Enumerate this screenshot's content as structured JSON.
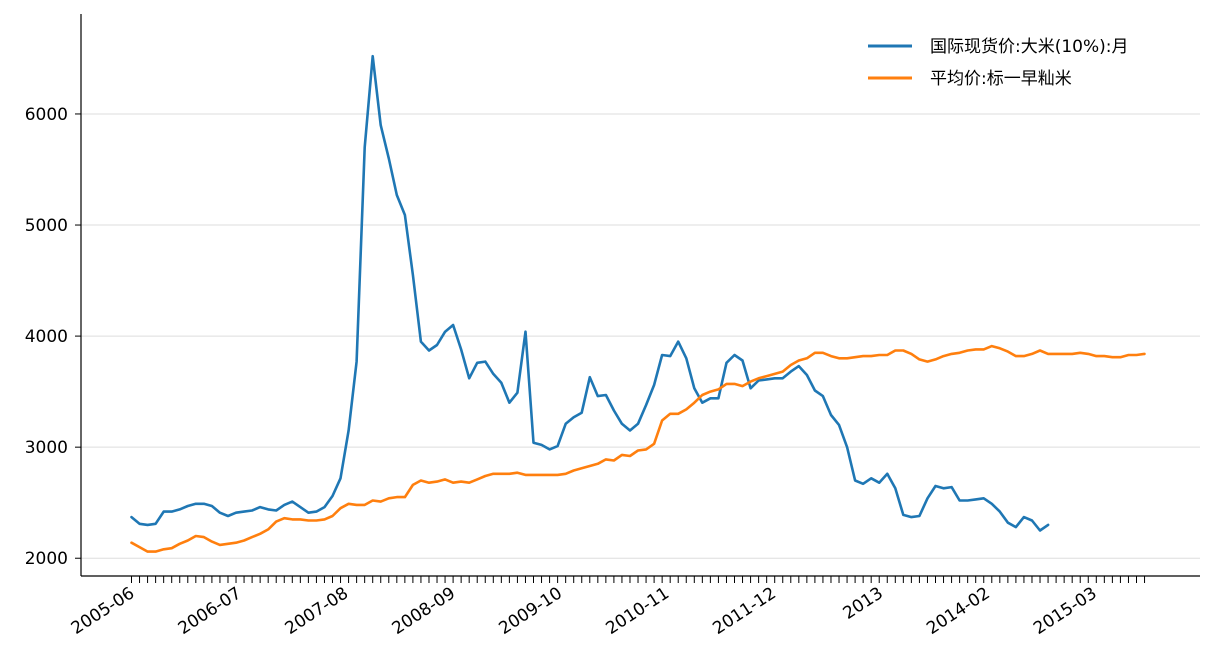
{
  "chart_data": {
    "type": "line",
    "x_start": "2005-06",
    "x_end": "2015-12",
    "xtick_labels": [
      "2005-06",
      "2006-07",
      "2007-08",
      "2008-09",
      "2009-10",
      "2010-11",
      "2011-12",
      "2013",
      "2014-02",
      "2015-03"
    ],
    "ytick_labels": [
      "2000",
      "3000",
      "4000",
      "5000",
      "6000"
    ],
    "ylim": [
      1840,
      6900
    ],
    "grid": "horizontal",
    "legend_position": "top-right",
    "series": [
      {
        "name": "国际现货价:大米(10%):月",
        "color": "#1f77b4",
        "values": [
          2370,
          2310,
          2300,
          2310,
          2420,
          2420,
          2440,
          2470,
          2490,
          2490,
          2470,
          2410,
          2380,
          2410,
          2420,
          2430,
          2460,
          2440,
          2430,
          2480,
          2510,
          2460,
          2410,
          2420,
          2460,
          2560,
          2720,
          3150,
          3770,
          5700,
          6520,
          5900,
          5600,
          5270,
          5090,
          4550,
          3950,
          3870,
          3920,
          4040,
          4100,
          3880,
          3620,
          3760,
          3770,
          3660,
          3580,
          3400,
          3490,
          4040,
          3040,
          3020,
          2980,
          3010,
          3210,
          3270,
          3310,
          3630,
          3460,
          3470,
          3330,
          3210,
          3150,
          3210,
          3380,
          3560,
          3830,
          3820,
          3950,
          3800,
          3530,
          3400,
          3440,
          3440,
          3760,
          3830,
          3780,
          3530,
          3600,
          3610,
          3620,
          3620,
          3680,
          3730,
          3650,
          3510,
          3460,
          3290,
          3200,
          3000,
          2700,
          2670,
          2720,
          2680,
          2760,
          2630,
          2390,
          2370,
          2380,
          2540,
          2650,
          2630,
          2640,
          2520,
          2520,
          2530,
          2540,
          2490,
          2420,
          2320,
          2280,
          2370,
          2340,
          2250,
          2300
        ],
        "last_point": "2015-02"
      },
      {
        "name": "平均价:标一早籼米",
        "color": "#ff7f0e",
        "values": [
          2140,
          2100,
          2060,
          2060,
          2080,
          2090,
          2130,
          2160,
          2200,
          2190,
          2150,
          2120,
          2130,
          2140,
          2160,
          2190,
          2220,
          2260,
          2330,
          2360,
          2350,
          2350,
          2340,
          2340,
          2350,
          2380,
          2450,
          2490,
          2480,
          2480,
          2520,
          2510,
          2540,
          2550,
          2550,
          2660,
          2700,
          2680,
          2690,
          2710,
          2680,
          2690,
          2680,
          2710,
          2740,
          2760,
          2760,
          2760,
          2770,
          2750,
          2750,
          2750,
          2750,
          2750,
          2760,
          2790,
          2810,
          2830,
          2850,
          2890,
          2880,
          2930,
          2920,
          2970,
          2980,
          3030,
          3240,
          3300,
          3300,
          3340,
          3400,
          3470,
          3500,
          3520,
          3570,
          3570,
          3550,
          3590,
          3620,
          3640,
          3660,
          3680,
          3740,
          3780,
          3800,
          3850,
          3850,
          3820,
          3800,
          3800,
          3810,
          3820,
          3820,
          3830,
          3830,
          3870,
          3870,
          3840,
          3790,
          3770,
          3790,
          3820,
          3840,
          3850,
          3870,
          3880,
          3880,
          3910,
          3890,
          3860,
          3820,
          3820,
          3840,
          3870,
          3840,
          3840,
          3840,
          3840,
          3850,
          3840,
          3820,
          3820,
          3810,
          3810,
          3830,
          3830,
          3840
        ]
      }
    ]
  }
}
